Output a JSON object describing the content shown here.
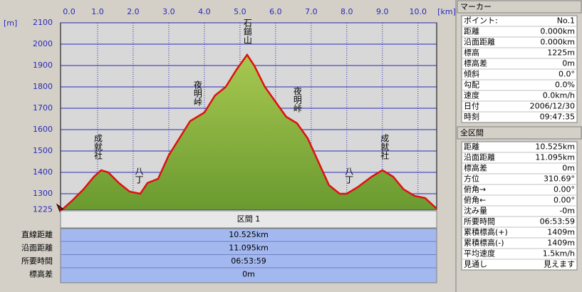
{
  "chart_data": {
    "type": "area",
    "x_unit": "[km]",
    "y_unit": "[m]",
    "xlim": [
      0,
      10.525
    ],
    "ylim": [
      1225,
      2100
    ],
    "xticks": [
      {
        "value": 0,
        "label": "0.0"
      },
      {
        "value": 1,
        "label": "1.0"
      },
      {
        "value": 2,
        "label": "2.0"
      },
      {
        "value": 3,
        "label": "3.0"
      },
      {
        "value": 4,
        "label": "4.0"
      },
      {
        "value": 5,
        "label": "5.0"
      },
      {
        "value": 6,
        "label": "6.0"
      },
      {
        "value": 7,
        "label": "7.0"
      },
      {
        "value": 8,
        "label": "8.0"
      },
      {
        "value": 9,
        "label": "9.0"
      },
      {
        "value": 10,
        "label": "10.0"
      }
    ],
    "yticks": [
      1225,
      1300,
      1400,
      1500,
      1600,
      1700,
      1800,
      1900,
      2000,
      2100
    ],
    "x": [
      0,
      0.3,
      0.6,
      0.9,
      1.1,
      1.3,
      1.6,
      1.9,
      2.2,
      2.4,
      2.7,
      3.0,
      3.3,
      3.6,
      3.8,
      4.0,
      4.3,
      4.6,
      4.9,
      5.2,
      5.4,
      5.7,
      6.0,
      6.3,
      6.6,
      6.9,
      7.2,
      7.5,
      7.8,
      8.0,
      8.3,
      8.7,
      9.0,
      9.3,
      9.6,
      9.9,
      10.2,
      10.525
    ],
    "values": [
      1225,
      1270,
      1320,
      1380,
      1410,
      1400,
      1350,
      1310,
      1300,
      1350,
      1370,
      1480,
      1560,
      1640,
      1660,
      1680,
      1760,
      1800,
      1880,
      1950,
      1900,
      1800,
      1730,
      1660,
      1630,
      1560,
      1450,
      1340,
      1300,
      1300,
      1330,
      1380,
      1410,
      1380,
      1320,
      1290,
      1280,
      1230
    ],
    "color": "#e01010",
    "fill_color": "#6a9a30",
    "grid": true,
    "annotations": [
      {
        "text": "成就社",
        "x": 1.0,
        "y": 1410
      },
      {
        "text": "八丁",
        "x": 2.15,
        "y": 1300
      },
      {
        "text": "夜明峠",
        "x": 3.8,
        "y": 1660
      },
      {
        "text": "石鎚山",
        "x": 5.2,
        "y": 1950
      },
      {
        "text": "夜明峠",
        "x": 6.6,
        "y": 1630
      },
      {
        "text": "八丁",
        "x": 8.05,
        "y": 1300
      },
      {
        "text": "成就社",
        "x": 9.05,
        "y": 1410
      }
    ]
  },
  "section": {
    "title": "区間 1",
    "rows": [
      [
        "直線距離",
        "10.525km"
      ],
      [
        "沿面距離",
        "11.095km"
      ],
      [
        "所要時間",
        "06:53:59"
      ],
      [
        "標高差",
        "0m"
      ]
    ]
  },
  "marker": {
    "title": "マーカー",
    "rows": [
      [
        "ポイント:",
        "No.1"
      ],
      [
        "距離",
        "0.000km"
      ],
      [
        "沿面距離",
        "0.000km"
      ],
      [
        "標高",
        "1225m"
      ],
      [
        "標高差",
        "0m"
      ],
      [
        "傾斜",
        "0.0°"
      ],
      [
        "勾配",
        "0.0%"
      ],
      [
        "速度",
        "0.0km/h"
      ],
      [
        "日付",
        "2006/12/30"
      ],
      [
        "時刻",
        "09:47:35"
      ]
    ]
  },
  "total": {
    "title": "全区間",
    "rows": [
      [
        "距離",
        "10.525km"
      ],
      [
        "沿面距離",
        "11.095km"
      ],
      [
        "標高差",
        "0m"
      ],
      [
        "方位",
        "310.69°"
      ],
      [
        "俯角→",
        "0.00°"
      ],
      [
        "俯角←",
        "0.00°"
      ],
      [
        "沈み量",
        "-0m"
      ],
      [
        "所要時間",
        "06:53:59"
      ],
      [
        "累積標高(+)",
        "1409m"
      ],
      [
        "累積標高(-)",
        "1409m"
      ],
      [
        "平均速度",
        "1.5km/h"
      ],
      [
        "見通し",
        "見えます"
      ]
    ]
  }
}
